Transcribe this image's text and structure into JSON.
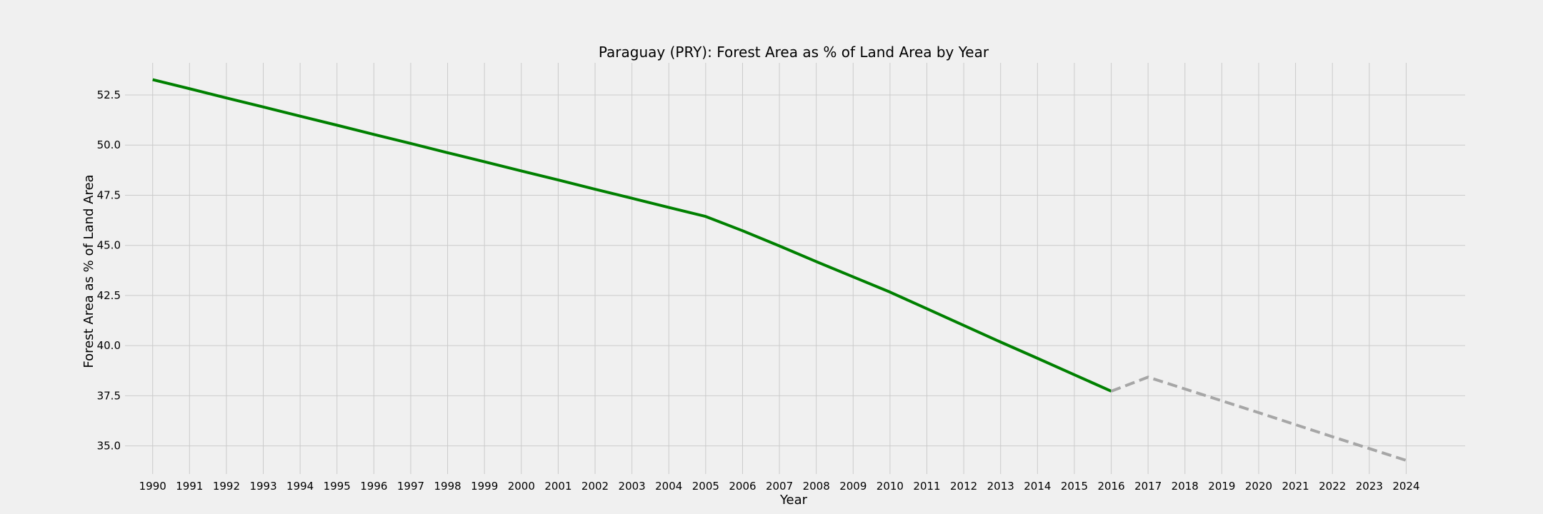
{
  "chart_data": {
    "type": "line",
    "title": "Paraguay (PRY): Forest Area as % of Land Area by Year",
    "xlabel": "Year",
    "ylabel": "Forest Area as % of Land Area",
    "x_ticks": [
      "1990",
      "1991",
      "1992",
      "1993",
      "1994",
      "1995",
      "1996",
      "1997",
      "1998",
      "1999",
      "2000",
      "2001",
      "2002",
      "2003",
      "2004",
      "2005",
      "2006",
      "2007",
      "2008",
      "2009",
      "2010",
      "2011",
      "2012",
      "2013",
      "2014",
      "2015",
      "2016",
      "2017",
      "2018",
      "2019",
      "2020",
      "2021",
      "2022",
      "2023",
      "2024"
    ],
    "y_ticks": [
      "35.0",
      "37.5",
      "40.0",
      "42.5",
      "45.0",
      "47.5",
      "50.0",
      "52.5"
    ],
    "xlim": [
      1989.25,
      2025.6
    ],
    "ylim": [
      33.6,
      54.1
    ],
    "grid": true,
    "series": [
      {
        "color": "#008000",
        "style": "solid",
        "x": [
          1990,
          1991,
          1992,
          1993,
          1994,
          1995,
          1996,
          1997,
          1998,
          1999,
          2000,
          2001,
          2002,
          2003,
          2004,
          2005,
          2006,
          2007,
          2008,
          2009,
          2010,
          2011,
          2012,
          2013,
          2014,
          2015,
          2016
        ],
        "y": [
          53.26,
          52.81,
          52.35,
          51.9,
          51.44,
          50.99,
          50.53,
          50.08,
          49.62,
          49.17,
          48.71,
          48.26,
          47.8,
          47.35,
          46.89,
          46.44,
          45.73,
          44.97,
          44.19,
          43.43,
          42.67,
          41.84,
          41.01,
          40.18,
          39.37,
          38.55,
          37.73
        ]
      },
      {
        "color": "#a6a6a6",
        "style": "dashed",
        "x": [
          2016,
          2017,
          2018,
          2019,
          2020,
          2021,
          2022,
          2023,
          2024
        ],
        "y": [
          37.73,
          38.43,
          37.84,
          37.25,
          36.66,
          36.06,
          35.46,
          34.87,
          34.28
        ]
      }
    ]
  }
}
